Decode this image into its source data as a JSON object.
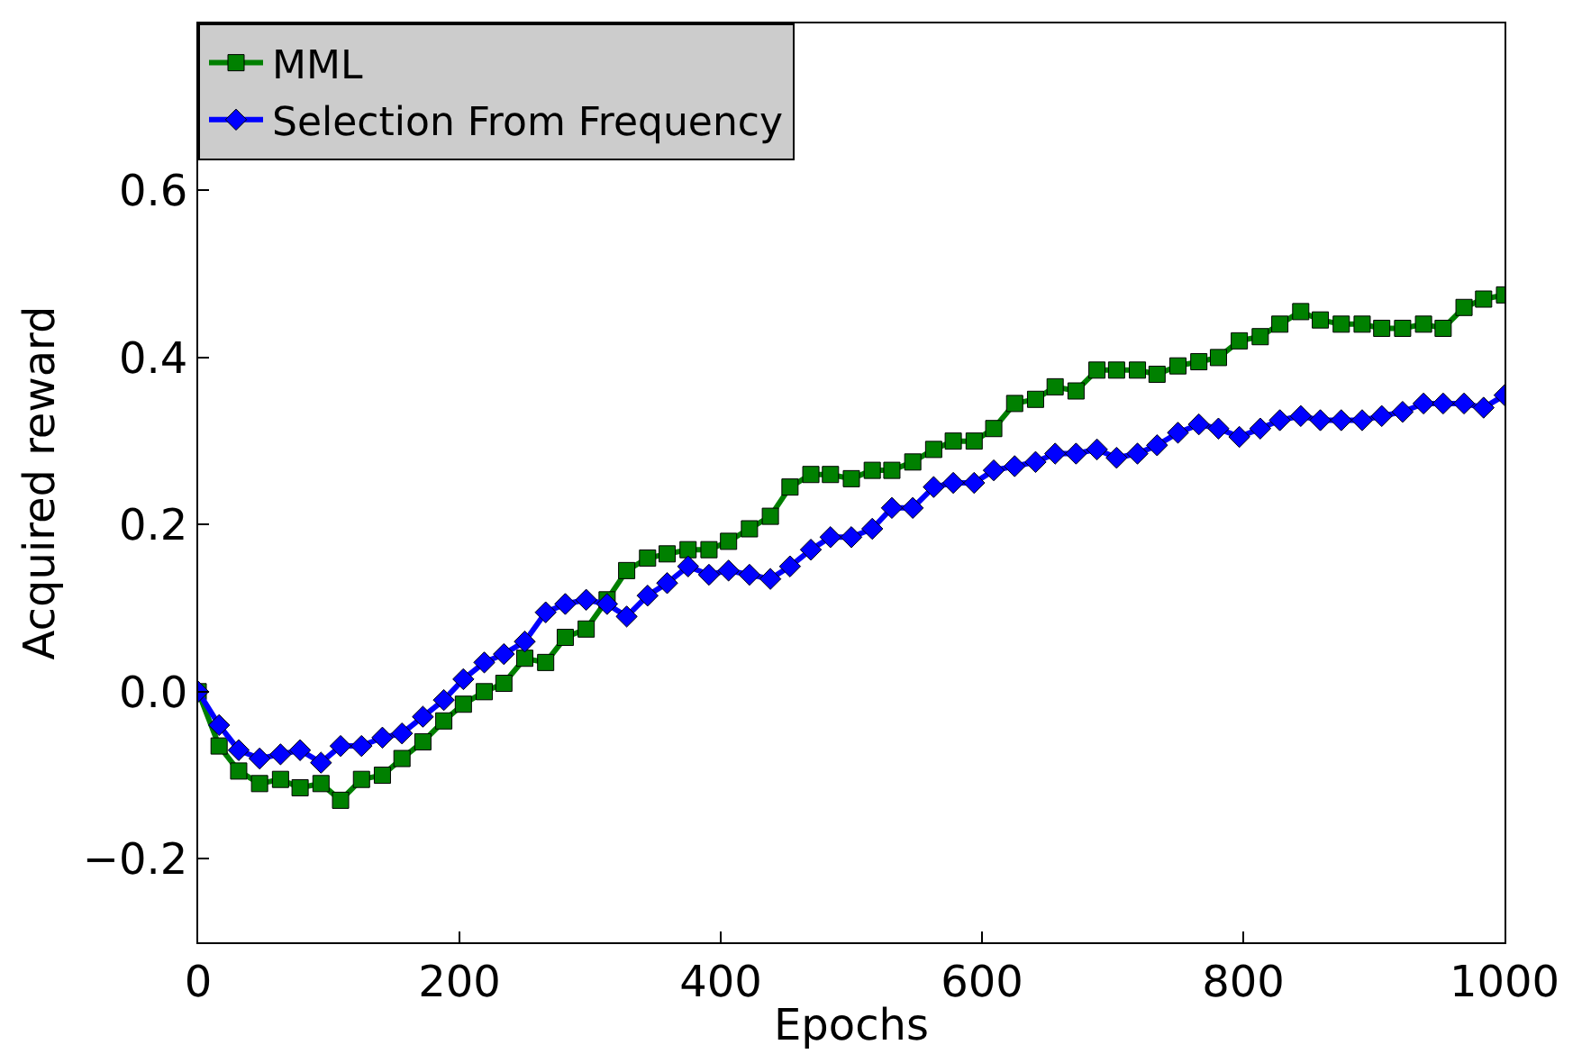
{
  "chart_data": {
    "type": "line",
    "xlabel": "Epochs",
    "ylabel": "Acquired reward",
    "x": [
      0,
      16,
      31,
      47,
      63,
      78,
      94,
      109,
      125,
      141,
      156,
      172,
      188,
      203,
      219,
      234,
      250,
      266,
      281,
      297,
      313,
      328,
      344,
      359,
      375,
      391,
      406,
      422,
      438,
      453,
      469,
      484,
      500,
      516,
      531,
      547,
      563,
      578,
      594,
      609,
      625,
      641,
      656,
      672,
      688,
      703,
      719,
      734,
      750,
      766,
      781,
      797,
      813,
      828,
      844,
      859,
      875,
      891,
      906,
      922,
      938,
      953,
      969,
      984,
      1000
    ],
    "series": [
      {
        "name": "MML",
        "color": "#008000",
        "marker": "square",
        "values": [
          0.0,
          -0.065,
          -0.095,
          -0.11,
          -0.105,
          -0.115,
          -0.11,
          -0.13,
          -0.105,
          -0.1,
          -0.08,
          -0.06,
          -0.035,
          -0.015,
          0.0,
          0.01,
          0.04,
          0.035,
          0.065,
          0.075,
          0.11,
          0.145,
          0.16,
          0.165,
          0.17,
          0.17,
          0.18,
          0.195,
          0.21,
          0.245,
          0.26,
          0.26,
          0.255,
          0.265,
          0.265,
          0.275,
          0.29,
          0.3,
          0.3,
          0.315,
          0.345,
          0.35,
          0.365,
          0.36,
          0.385,
          0.385,
          0.385,
          0.38,
          0.39,
          0.395,
          0.4,
          0.42,
          0.425,
          0.44,
          0.455,
          0.445,
          0.44,
          0.44,
          0.435,
          0.435,
          0.44,
          0.435,
          0.46,
          0.47,
          0.475
        ]
      },
      {
        "name": "Selection From Frequency",
        "color": "#0000ff",
        "marker": "diamond",
        "values": [
          0.0,
          -0.04,
          -0.07,
          -0.08,
          -0.075,
          -0.07,
          -0.085,
          -0.065,
          -0.065,
          -0.055,
          -0.05,
          -0.03,
          -0.01,
          0.015,
          0.035,
          0.045,
          0.06,
          0.095,
          0.105,
          0.11,
          0.105,
          0.09,
          0.115,
          0.13,
          0.15,
          0.14,
          0.145,
          0.14,
          0.135,
          0.15,
          0.17,
          0.185,
          0.185,
          0.195,
          0.22,
          0.22,
          0.245,
          0.25,
          0.25,
          0.265,
          0.27,
          0.275,
          0.285,
          0.285,
          0.29,
          0.28,
          0.285,
          0.295,
          0.31,
          0.32,
          0.315,
          0.305,
          0.315,
          0.325,
          0.33,
          0.325,
          0.325,
          0.325,
          0.33,
          0.335,
          0.345,
          0.345,
          0.345,
          0.34,
          0.355
        ]
      }
    ],
    "xlim": [
      0,
      1000
    ],
    "xticks": [
      0,
      200,
      400,
      600,
      800,
      1000
    ],
    "ylim": [
      -0.3,
      0.8
    ],
    "yticks": [
      {
        "value": -0.2,
        "label": "−0.2"
      },
      {
        "value": 0.0,
        "label": "0.0"
      },
      0.2,
      0.4,
      0.6
    ],
    "legend": "top left",
    "line_style": "solid"
  }
}
